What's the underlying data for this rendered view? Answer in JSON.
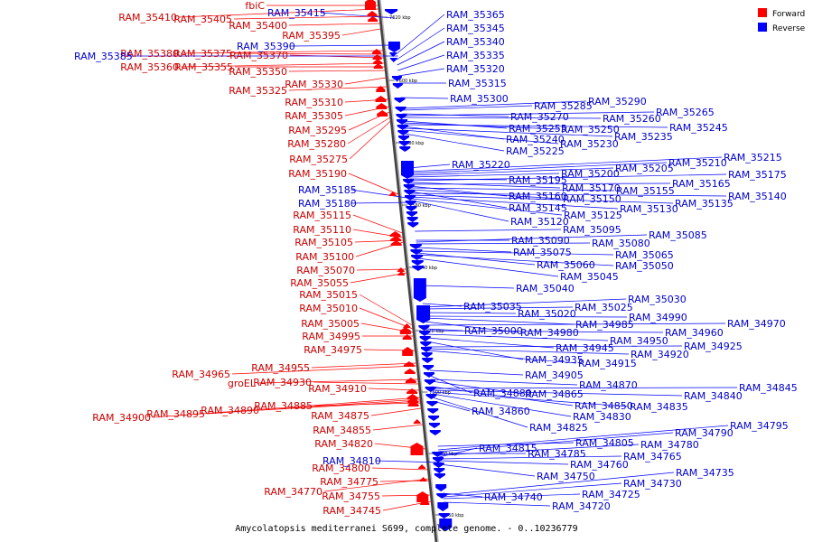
{
  "caption": "Amycolatopsis mediterranei S699, complete genome. - 0..10236779",
  "legend": [
    {
      "label": "Forward",
      "color": "#ff0000"
    },
    {
      "label": "Reverse",
      "color": "#0000ff"
    }
  ],
  "colors": {
    "forward": "#ff0000",
    "reverse": "#0000ff",
    "forward_text": "#cc0000",
    "reverse_text": "#0000cc"
  },
  "ticks": [
    "7620 kbp",
    "7600 kbp",
    "7580 kbp",
    "7560 kbp",
    "7540 kbp",
    "7520 kbp",
    "7500 kbp",
    "7480 kbp",
    "7460 kbp"
  ],
  "forward_labels": [
    "fbiC",
    "RAM_35410",
    "RAM_35405",
    "RAM_35400",
    "RAM_35395",
    "RAM_35380",
    "RAM_35375",
    "RAM_35370",
    "RAM_35360",
    "RAM_35355",
    "RAM_35350",
    "RAM_35330",
    "RAM_35325",
    "RAM_35310",
    "RAM_35305",
    "RAM_35295",
    "RAM_35280",
    "RAM_35275",
    "RAM_35190",
    "RAM_35115",
    "RAM_35110",
    "RAM_35105",
    "RAM_35100",
    "RAM_35070",
    "RAM_35055",
    "RAM_35015",
    "RAM_35010",
    "RAM_35005",
    "RAM_34995",
    "RAM_34975",
    "RAM_34965",
    "RAM_34955",
    "groEL",
    "RAM_34930",
    "RAM_34910",
    "RAM_34900",
    "RAM_34895",
    "RAM_34890",
    "RAM_34885",
    "RAM_34875",
    "RAM_34855",
    "RAM_34820",
    "RAM_34800",
    "RAM_34775",
    "RAM_34770",
    "RAM_34755",
    "RAM_34745"
  ],
  "left_reverse_labels": [
    "RAM_35415",
    "RAM_35390",
    "RAM_35385",
    "RAM_35185",
    "RAM_35180",
    "RAM_34810"
  ],
  "reverse_labels": [
    "RAM_35365",
    "RAM_35345",
    "RAM_35340",
    "RAM_35335",
    "RAM_35320",
    "RAM_35315",
    "RAM_35300",
    "RAM_35290",
    "RAM_35285",
    "RAM_35270",
    "RAM_35265",
    "RAM_35260",
    "RAM_35255",
    "RAM_35250",
    "RAM_35245",
    "RAM_35240",
    "RAM_35235",
    "RAM_35230",
    "RAM_35225",
    "RAM_35220",
    "RAM_35215",
    "RAM_35210",
    "RAM_35205",
    "RAM_35200",
    "RAM_35195",
    "RAM_35175",
    "RAM_35170",
    "RAM_35165",
    "RAM_35160",
    "RAM_35155",
    "RAM_35150",
    "RAM_35145",
    "RAM_35140",
    "RAM_35135",
    "RAM_35130",
    "RAM_35125",
    "RAM_35120",
    "RAM_35095",
    "RAM_35090",
    "RAM_35085",
    "RAM_35080",
    "RAM_35075",
    "RAM_35065",
    "RAM_35060",
    "RAM_35050",
    "RAM_35045",
    "RAM_35040",
    "RAM_35035",
    "RAM_35030",
    "RAM_35025",
    "RAM_35020",
    "RAM_34990",
    "RAM_34985",
    "RAM_34980",
    "RAM_34970",
    "RAM_35000",
    "RAM_34960",
    "RAM_34950",
    "RAM_34945",
    "RAM_34935",
    "RAM_34925",
    "RAM_34920",
    "RAM_34915",
    "RAM_34905",
    "RAM_34880",
    "RAM_34870",
    "RAM_34865",
    "RAM_34850",
    "RAM_34845",
    "RAM_34840",
    "RAM_34835",
    "RAM_34830",
    "RAM_34825",
    "RAM_34860",
    "RAM_34805",
    "RAM_34795",
    "RAM_34790",
    "RAM_34785",
    "RAM_34780",
    "RAM_34815",
    "RAM_34765",
    "RAM_34760",
    "RAM_34750",
    "RAM_34740",
    "RAM_34735",
    "RAM_34730",
    "RAM_34725",
    "RAM_34720"
  ]
}
